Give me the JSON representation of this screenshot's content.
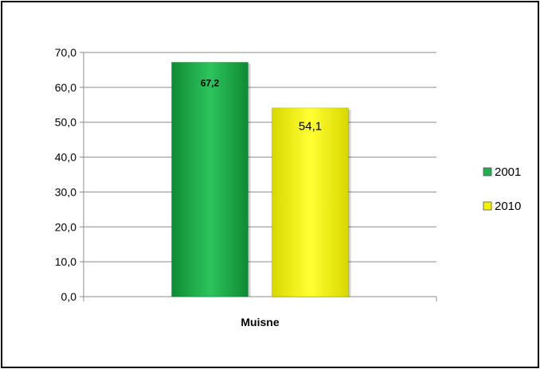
{
  "chart_data": {
    "type": "bar",
    "categories": [
      "Muisne"
    ],
    "series": [
      {
        "name": "2001",
        "values": [
          67.2
        ],
        "label": "67,2",
        "color": "#1fb14e"
      },
      {
        "name": "2010",
        "values": [
          54.1
        ],
        "label": "54,1",
        "color": "#f3f300"
      }
    ],
    "ylim": [
      0,
      70
    ],
    "yticks": [
      0,
      10,
      20,
      30,
      40,
      50,
      60,
      70
    ],
    "ytick_labels": [
      "0,0",
      "10,0",
      "20,0",
      "30,0",
      "40,0",
      "50,0",
      "60,0",
      "70,0"
    ],
    "grid": true,
    "legend_position": "right",
    "title": "",
    "xlabel": "",
    "ylabel": ""
  }
}
